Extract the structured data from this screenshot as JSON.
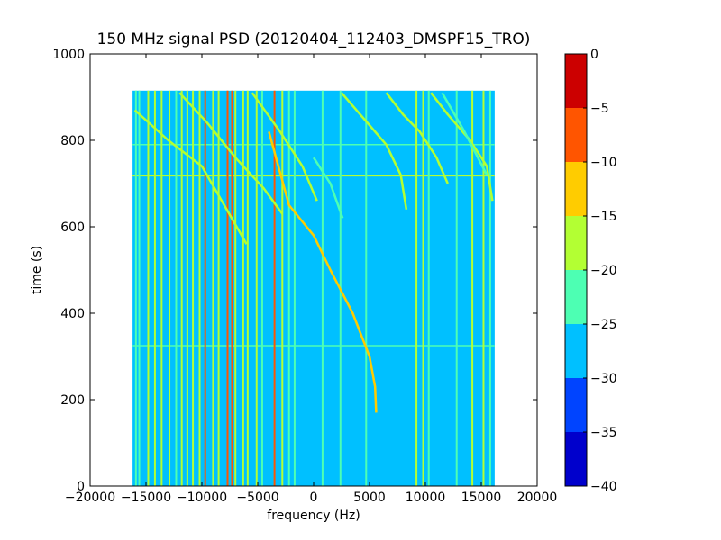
{
  "chart_data": {
    "type": "heatmap",
    "title": "150 MHz signal PSD (20120404_112403_DMSPF15_TRO)",
    "xlabel": "frequency (Hz)",
    "ylabel": "time (s)",
    "xlim": [
      -20000,
      20000
    ],
    "ylim": [
      0,
      1000
    ],
    "x_ticks": [
      -20000,
      -15000,
      -10000,
      -5000,
      0,
      5000,
      10000,
      15000,
      20000
    ],
    "x_tick_labels": [
      "−20000",
      "−15000",
      "−10000",
      "−5000",
      "0",
      "5000",
      "10000",
      "15000",
      "20000"
    ],
    "y_ticks": [
      0,
      200,
      400,
      600,
      800,
      1000
    ],
    "y_tick_labels": [
      "0",
      "200",
      "400",
      "600",
      "800",
      "1000"
    ],
    "data_extent": {
      "freq": [
        -16200,
        16200
      ],
      "time": [
        0,
        915
      ]
    },
    "background_level": -27.5,
    "colorbar": {
      "range": [
        -40,
        0
      ],
      "levels": [
        -40,
        -35,
        -30,
        -25,
        -20,
        -15,
        -10,
        -5,
        0
      ],
      "tick_labels": [
        "−40",
        "−35",
        "−30",
        "−25",
        "−20",
        "−15",
        "−10",
        "−5",
        "0"
      ],
      "colors": [
        "#0000cc",
        "#0044ff",
        "#00c0ff",
        "#4dffb3",
        "#b3ff33",
        "#ffcc00",
        "#ff5500",
        "#cc0000"
      ]
    },
    "tones": [
      {
        "freq": -15900,
        "level": -22
      },
      {
        "freq": -15600,
        "level": -22
      },
      {
        "freq": -14800,
        "level": -18
      },
      {
        "freq": -14200,
        "level": -18
      },
      {
        "freq": -13600,
        "level": -18
      },
      {
        "freq": -12900,
        "level": -18
      },
      {
        "freq": -12300,
        "level": -22
      },
      {
        "freq": -11800,
        "level": -18
      },
      {
        "freq": -11300,
        "level": -18
      },
      {
        "freq": -10800,
        "level": -18
      },
      {
        "freq": -10200,
        "level": -18
      },
      {
        "freq": -9700,
        "level": -8
      },
      {
        "freq": -9000,
        "level": -18
      },
      {
        "freq": -8500,
        "level": -18
      },
      {
        "freq": -7700,
        "level": -8
      },
      {
        "freq": -7300,
        "level": -8
      },
      {
        "freq": -7000,
        "level": -18
      },
      {
        "freq": -6300,
        "level": -18
      },
      {
        "freq": -5900,
        "level": -18
      },
      {
        "freq": -5100,
        "level": -18
      },
      {
        "freq": -4600,
        "level": -22
      },
      {
        "freq": -3500,
        "level": -8
      },
      {
        "freq": -2800,
        "level": -18
      },
      {
        "freq": -2200,
        "level": -22
      },
      {
        "freq": -1700,
        "level": -22
      },
      {
        "freq": 800,
        "level": -22
      },
      {
        "freq": 2400,
        "level": -22
      },
      {
        "freq": 4700,
        "level": -22
      },
      {
        "freq": 9200,
        "level": -18
      },
      {
        "freq": 9800,
        "level": -18
      },
      {
        "freq": 10300,
        "level": -22
      },
      {
        "freq": 12800,
        "level": -22
      },
      {
        "freq": 14200,
        "level": -18
      },
      {
        "freq": 15200,
        "level": -18
      },
      {
        "freq": 15800,
        "level": -22
      }
    ],
    "sweeps": [
      {
        "level": -12,
        "points": [
          [
            -4000,
            820
          ],
          [
            -2200,
            650
          ],
          [
            0,
            580
          ],
          [
            1500,
            500
          ],
          [
            3500,
            400
          ],
          [
            5000,
            300
          ],
          [
            5500,
            230
          ],
          [
            5600,
            170
          ]
        ]
      },
      {
        "level": -18,
        "points": [
          [
            -16000,
            870
          ],
          [
            -13000,
            800
          ],
          [
            -10000,
            740
          ],
          [
            -8000,
            650
          ],
          [
            -6000,
            560
          ]
        ]
      },
      {
        "level": -18,
        "points": [
          [
            -12000,
            910
          ],
          [
            -9500,
            840
          ],
          [
            -7000,
            760
          ],
          [
            -4500,
            690
          ],
          [
            -2800,
            630
          ]
        ]
      },
      {
        "level": -18,
        "points": [
          [
            -5500,
            910
          ],
          [
            -3000,
            820
          ],
          [
            -1000,
            740
          ],
          [
            300,
            660
          ]
        ]
      },
      {
        "level": -18,
        "points": [
          [
            2500,
            910
          ],
          [
            4500,
            850
          ],
          [
            6500,
            790
          ],
          [
            7800,
            720
          ],
          [
            8300,
            640
          ]
        ]
      },
      {
        "level": -18,
        "points": [
          [
            6500,
            910
          ],
          [
            8000,
            860
          ],
          [
            9500,
            820
          ],
          [
            11000,
            760
          ],
          [
            12000,
            700
          ]
        ]
      },
      {
        "level": -18,
        "points": [
          [
            10500,
            910
          ],
          [
            12000,
            860
          ],
          [
            14000,
            800
          ],
          [
            15500,
            740
          ],
          [
            16000,
            660
          ]
        ]
      },
      {
        "level": -22,
        "points": [
          [
            0,
            760
          ],
          [
            1500,
            700
          ],
          [
            2600,
            620
          ]
        ]
      },
      {
        "level": -22,
        "points": [
          [
            11500,
            910
          ],
          [
            13500,
            820
          ],
          [
            15500,
            720
          ]
        ]
      }
    ],
    "horizontal_lines": [
      {
        "time": 790,
        "level": -22
      },
      {
        "time": 718,
        "level": -18
      },
      {
        "time": 325,
        "level": -22
      }
    ]
  }
}
